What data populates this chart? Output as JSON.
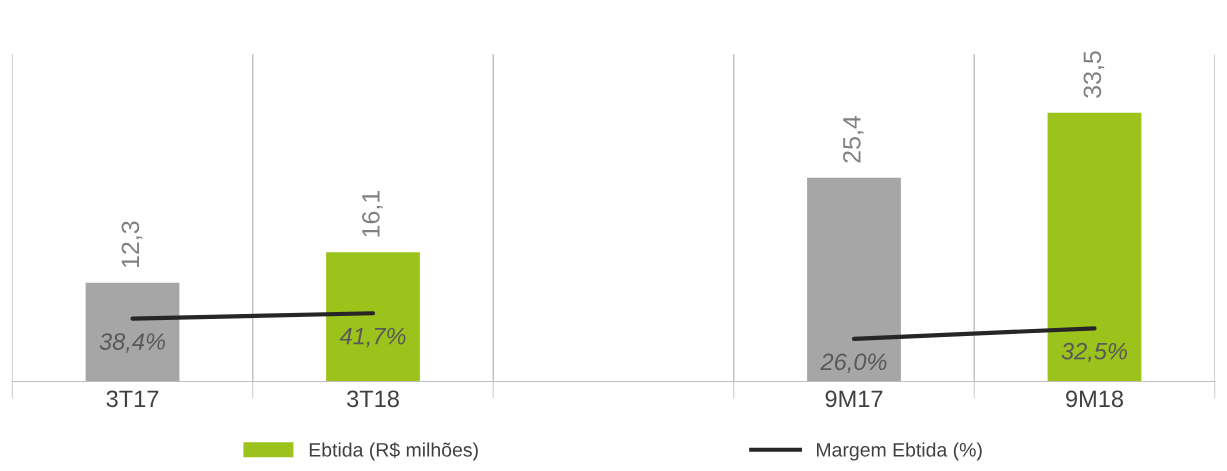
{
  "chart_data": {
    "type": "bar",
    "categories": [
      "3T17",
      "3T18",
      null,
      "9M17",
      "9M18"
    ],
    "series": [
      {
        "name": "Ebtida (R$ milhões)",
        "color": "#9bc31c",
        "colors": [
          "#a6a6a6",
          "#9bc31c",
          null,
          "#a6a6a6",
          "#9bc31c"
        ],
        "values": [
          12.3,
          16.1,
          null,
          25.4,
          33.5
        ],
        "value_labels": [
          "12,3",
          "16,1",
          null,
          "25,4",
          "33,5"
        ]
      },
      {
        "name": "Margem Ebtida (%)",
        "type": "line",
        "axis": "y2",
        "color": "#262626",
        "values": [
          38.4,
          41.7,
          null,
          26.0,
          32.5
        ],
        "value_labels": [
          "38,4%",
          "41,7%",
          null,
          "26,0%",
          "32,5%"
        ]
      }
    ],
    "ylim": [
      0,
      40.8
    ],
    "y2lim": [
      0,
      200
    ],
    "tick_labels": "x",
    "grid": "x",
    "legend": "bottom",
    "marker": "none",
    "line_style": "solid"
  }
}
